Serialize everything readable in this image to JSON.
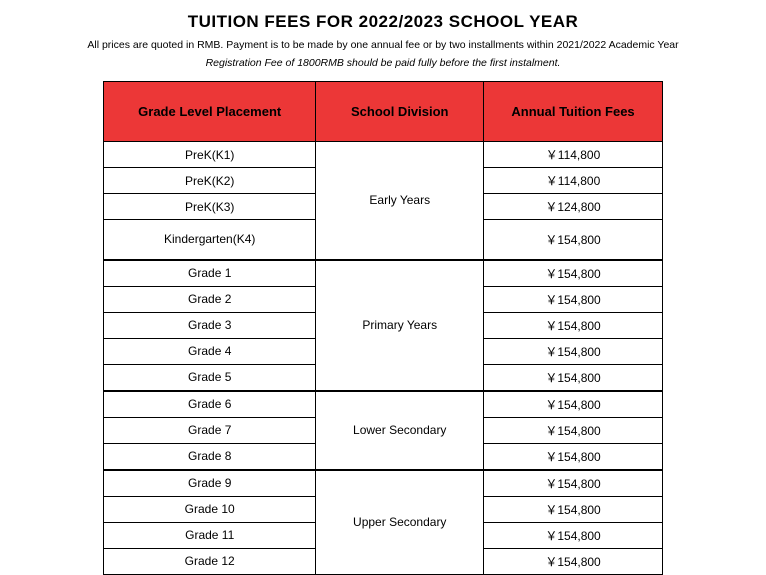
{
  "title": "TUITION  FEES FOR 2022/2023 SCHOOL YEAR",
  "subtitle": "All  prices are quoted in RMB. Payment is to be made by one annual fee or by two installments within 2021/2022 Academic Year",
  "subtitle2": "Registration  Fee of 1800RMB should be paid fully before the first instalment.",
  "headers": {
    "grade": "Grade Level Placement",
    "division": "School Division",
    "fee": "Annual Tuition Fees"
  },
  "header_bg": "#ec3737",
  "header_fg": "#000000",
  "border_color": "#000000",
  "background_color": "#ffffff",
  "text_color": "#000000",
  "title_fontsize": 17,
  "subtitle_fontsize": 10.5,
  "header_fontsize": 13,
  "cell_fontsize": 12,
  "column_widths_pct": [
    38,
    30,
    32
  ],
  "divisions": [
    {
      "name": "Early Years",
      "start": 0,
      "span": 4
    },
    {
      "name": "Primary Years",
      "start": 4,
      "span": 5
    },
    {
      "name": "Lower Secondary",
      "start": 9,
      "span": 3
    },
    {
      "name": "Upper Secondary",
      "start": 12,
      "span": 4
    }
  ],
  "rows": [
    {
      "grade": "PreK(K1)",
      "fee": "￥114,800",
      "tall": false
    },
    {
      "grade": "PreK(K2)",
      "fee": "￥114,800",
      "tall": false
    },
    {
      "grade": "PreK(K3)",
      "fee": "￥124,800",
      "tall": false
    },
    {
      "grade": "Kindergarten(K4)",
      "fee": "￥154,800",
      "tall": true
    },
    {
      "grade": "Grade 1",
      "fee": "￥154,800",
      "tall": false
    },
    {
      "grade": "Grade 2",
      "fee": "￥154,800",
      "tall": false
    },
    {
      "grade": "Grade 3",
      "fee": "￥154,800",
      "tall": false
    },
    {
      "grade": "Grade 4",
      "fee": "￥154,800",
      "tall": false
    },
    {
      "grade": "Grade 5",
      "fee": "￥154,800",
      "tall": false
    },
    {
      "grade": "Grade 6",
      "fee": "￥154,800",
      "tall": false
    },
    {
      "grade": "Grade 7",
      "fee": "￥154,800",
      "tall": false
    },
    {
      "grade": "Grade 8",
      "fee": "￥154,800",
      "tall": false
    },
    {
      "grade": "Grade 9",
      "fee": "￥154,800",
      "tall": false
    },
    {
      "grade": "Grade 10",
      "fee": "￥154,800",
      "tall": false
    },
    {
      "grade": "Grade 11",
      "fee": "￥154,800",
      "tall": false
    },
    {
      "grade": "Grade 12",
      "fee": "￥154,800",
      "tall": false
    }
  ]
}
